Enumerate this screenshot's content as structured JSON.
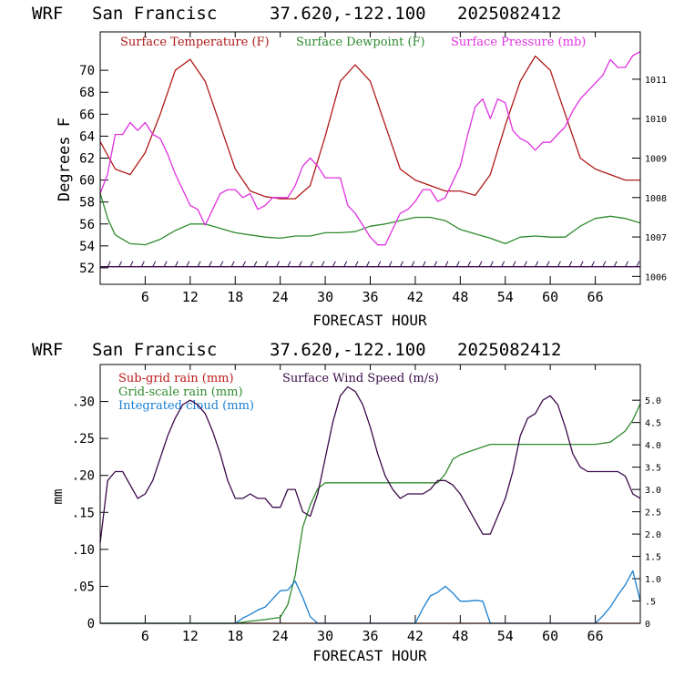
{
  "charts": {
    "top": {
      "header": {
        "model": "WRF",
        "location": "San Francisc",
        "coords": "37.620,-122.100",
        "init": "2025082412"
      },
      "ylabel": "Degrees F",
      "xlabel": "FORECAST HOUR",
      "legend": [
        "Surface Temperature (F)",
        "Surface Dewpoint (F)",
        "Surface Pressure (mb)"
      ]
    },
    "bottom": {
      "header": {
        "model": "WRF",
        "location": "San Francisc",
        "coords": "37.620,-122.100",
        "init": "2025082412"
      },
      "ylabel": "mm",
      "xlabel": "FORECAST HOUR",
      "legend": [
        "Sub-grid rain (mm)",
        "Grid-scale rain (mm)",
        "Integrated cloud (mm)",
        "Surface Wind Speed (m/s)"
      ]
    }
  },
  "colors": {
    "temperature": "#b01818",
    "dewpoint": "#2e8b2e",
    "pressure": "#e030e0",
    "wind": "#3a0a4a",
    "subgrid": "#c01818",
    "gridscale": "#2e8b2e",
    "cloud": "#1a7fd0",
    "axis": "#000000"
  },
  "chart_data": [
    {
      "type": "line",
      "xlabel": "FORECAST HOUR",
      "ylabel": "Degrees F",
      "xlim": [
        0,
        72
      ],
      "ylim": [
        50.5,
        73.5
      ],
      "x_ticks": [
        6,
        12,
        18,
        24,
        30,
        36,
        42,
        48,
        54,
        60,
        66
      ],
      "y_ticks": [
        52,
        54,
        56,
        58,
        60,
        62,
        64,
        66,
        68,
        70
      ],
      "y2_label": "",
      "y2_lim": [
        1005.8,
        1012.2
      ],
      "y2_ticks": [
        1006,
        1007,
        1008,
        1009,
        1010,
        1011
      ],
      "grid": false,
      "legend_position": "top",
      "series": [
        {
          "name": "Surface Temperature (F)",
          "axis": "left",
          "x": [
            0,
            2,
            4,
            6,
            8,
            10,
            12,
            14,
            16,
            18,
            20,
            22,
            24,
            26,
            28,
            30,
            32,
            34,
            36,
            38,
            40,
            42,
            44,
            46,
            48,
            50,
            52,
            54,
            56,
            58,
            60,
            62,
            64,
            66,
            68,
            70,
            72
          ],
          "values": [
            63.5,
            61.0,
            60.5,
            62.5,
            66.0,
            70.0,
            71.0,
            69.0,
            65.0,
            61.0,
            59.0,
            58.5,
            58.3,
            58.3,
            59.5,
            64.0,
            69.0,
            70.5,
            69.0,
            65.0,
            61.0,
            60.0,
            59.5,
            59.0,
            59.0,
            58.6,
            60.5,
            65.0,
            69.0,
            71.3,
            70.0,
            66.0,
            62.0,
            61.0,
            60.5,
            60.0,
            60.0
          ]
        },
        {
          "name": "Surface Dewpoint (F)",
          "axis": "left",
          "x": [
            0,
            1,
            2,
            4,
            6,
            8,
            10,
            12,
            14,
            16,
            18,
            20,
            22,
            24,
            26,
            28,
            30,
            32,
            34,
            36,
            38,
            40,
            42,
            44,
            46,
            48,
            50,
            52,
            54,
            56,
            58,
            60,
            62,
            64,
            66,
            68,
            70,
            72
          ],
          "values": [
            58.8,
            56.5,
            55.0,
            54.2,
            54.1,
            54.6,
            55.4,
            56.0,
            56.0,
            55.6,
            55.2,
            55.0,
            54.8,
            54.7,
            54.9,
            54.9,
            55.2,
            55.2,
            55.3,
            55.8,
            56.0,
            56.3,
            56.6,
            56.6,
            56.3,
            55.5,
            55.1,
            54.7,
            54.2,
            54.8,
            54.9,
            54.8,
            54.8,
            55.8,
            56.5,
            56.7,
            56.5,
            56.1
          ]
        },
        {
          "name": "Surface Pressure (mb)",
          "axis": "right",
          "x": [
            0,
            1,
            2,
            3,
            4,
            5,
            6,
            7,
            8,
            9,
            10,
            11,
            12,
            13,
            14,
            15,
            16,
            17,
            18,
            19,
            20,
            21,
            22,
            23,
            24,
            25,
            26,
            27,
            28,
            29,
            30,
            31,
            32,
            33,
            34,
            35,
            36,
            37,
            38,
            39,
            40,
            41,
            42,
            43,
            44,
            45,
            46,
            47,
            48,
            49,
            50,
            51,
            52,
            53,
            54,
            55,
            56,
            57,
            58,
            59,
            60,
            61,
            62,
            63,
            64,
            65,
            66,
            67,
            68,
            69,
            70,
            71,
            72
          ],
          "values": [
            1008.1,
            1008.6,
            1009.6,
            1009.6,
            1009.9,
            1009.7,
            1009.9,
            1009.6,
            1009.5,
            1009.1,
            1008.6,
            1008.2,
            1007.8,
            1007.7,
            1007.3,
            1007.7,
            1008.1,
            1008.2,
            1008.2,
            1008.0,
            1008.1,
            1007.7,
            1007.8,
            1008.0,
            1008.0,
            1008.0,
            1008.3,
            1008.8,
            1009.0,
            1008.8,
            1008.5,
            1008.5,
            1008.5,
            1007.8,
            1007.6,
            1007.3,
            1007.0,
            1006.8,
            1006.8,
            1007.2,
            1007.6,
            1007.7,
            1007.9,
            1008.2,
            1008.2,
            1007.9,
            1008.0,
            1008.4,
            1008.8,
            1009.6,
            1010.3,
            1010.5,
            1010.0,
            1010.5,
            1010.4,
            1009.7,
            1009.5,
            1009.4,
            1009.2,
            1009.4,
            1009.4,
            1009.6,
            1009.8,
            1010.2,
            1010.5,
            1010.7,
            1010.9,
            1011.1,
            1011.5,
            1011.3,
            1011.3,
            1011.6,
            1011.7
          ]
        },
        {
          "name": "",
          "role": "wind barbs",
          "axis": "left",
          "x": [
            0,
            72
          ],
          "values": [
            52.1,
            52.1
          ]
        }
      ]
    },
    {
      "type": "line",
      "xlabel": "FORECAST HOUR",
      "ylabel": "mm",
      "xlim": [
        0,
        72
      ],
      "ylim": [
        0,
        0.35
      ],
      "x_ticks": [
        6,
        12,
        18,
        24,
        30,
        36,
        42,
        48,
        54,
        60,
        66
      ],
      "y_ticks": [
        0,
        0.05,
        0.1,
        0.15,
        0.2,
        0.25,
        0.3
      ],
      "y_tick_labels": [
        "0",
        ".05",
        ".10",
        ".15",
        ".20",
        ".25",
        ".30"
      ],
      "y2_label": "",
      "y2_lim": [
        0,
        5.8
      ],
      "y2_ticks": [
        0,
        0.5,
        1.0,
        1.5,
        2.0,
        2.5,
        3.0,
        3.5,
        4.0,
        4.5,
        5.0
      ],
      "y2_tick_labels": [
        "0",
        ".5",
        "1.0",
        "1.5",
        "2.0",
        "2.5",
        "3.0",
        "3.5",
        "4.0",
        "4.5",
        "5.0"
      ],
      "grid": false,
      "legend_position": "top-left",
      "series": [
        {
          "name": "Sub-grid rain (mm)",
          "axis": "left",
          "x": [
            0,
            72
          ],
          "values": [
            0,
            0
          ]
        },
        {
          "name": "Grid-scale rain (mm)",
          "axis": "left",
          "x": [
            0,
            18,
            20,
            22,
            24,
            25,
            26,
            27,
            28,
            29,
            30,
            32,
            36,
            40,
            45,
            46,
            47,
            48,
            50,
            52,
            54,
            56,
            60,
            64,
            66,
            68,
            70,
            71,
            72
          ],
          "values": [
            0,
            0,
            0.003,
            0.005,
            0.008,
            0.025,
            0.065,
            0.13,
            0.16,
            0.182,
            0.19,
            0.19,
            0.19,
            0.19,
            0.19,
            0.202,
            0.222,
            0.228,
            0.235,
            0.242,
            0.242,
            0.242,
            0.242,
            0.242,
            0.242,
            0.245,
            0.26,
            0.275,
            0.297
          ]
        },
        {
          "name": "Integrated cloud (mm)",
          "axis": "left",
          "x": [
            0,
            18,
            19,
            20,
            21,
            22,
            23,
            24,
            25,
            26,
            27,
            28,
            29,
            42,
            43,
            44,
            45,
            46,
            47,
            48,
            49,
            50,
            51,
            52,
            66,
            67,
            68,
            69,
            70,
            71,
            72
          ],
          "values": [
            0,
            0,
            0.007,
            0.012,
            0.018,
            0.022,
            0.033,
            0.044,
            0.045,
            0.057,
            0.035,
            0.009,
            0,
            0,
            0.02,
            0.037,
            0.042,
            0.05,
            0.041,
            0.03,
            0.03,
            0.031,
            0.03,
            0,
            0,
            0.01,
            0.022,
            0.038,
            0.052,
            0.071,
            0.03
          ]
        },
        {
          "name": "Surface Wind Speed (m/s)",
          "axis": "right",
          "x": [
            0,
            1,
            2,
            3,
            4,
            5,
            6,
            7,
            8,
            9,
            10,
            11,
            12,
            13,
            14,
            15,
            16,
            17,
            18,
            19,
            20,
            21,
            22,
            23,
            24,
            25,
            26,
            27,
            28,
            29,
            30,
            31,
            32,
            33,
            34,
            35,
            36,
            37,
            38,
            39,
            40,
            41,
            42,
            43,
            44,
            45,
            46,
            47,
            48,
            49,
            50,
            51,
            52,
            53,
            54,
            55,
            56,
            57,
            58,
            59,
            60,
            61,
            62,
            63,
            64,
            65,
            66,
            67,
            68,
            69,
            70,
            71,
            72
          ],
          "values": [
            1.8,
            3.2,
            3.4,
            3.4,
            3.1,
            2.8,
            2.9,
            3.2,
            3.7,
            4.2,
            4.6,
            4.9,
            5.0,
            4.9,
            4.7,
            4.3,
            3.8,
            3.2,
            2.8,
            2.8,
            2.9,
            2.8,
            2.8,
            2.6,
            2.6,
            3.0,
            3.0,
            2.5,
            2.4,
            2.9,
            3.7,
            4.5,
            5.1,
            5.3,
            5.2,
            4.9,
            4.4,
            3.8,
            3.3,
            3.0,
            2.8,
            2.9,
            2.9,
            2.9,
            3.0,
            3.2,
            3.2,
            3.1,
            2.9,
            2.6,
            2.3,
            2.0,
            2.0,
            2.4,
            2.8,
            3.4,
            4.2,
            4.6,
            4.7,
            5.0,
            5.1,
            4.9,
            4.4,
            3.8,
            3.5,
            3.4,
            3.4,
            3.4,
            3.4,
            3.4,
            3.3,
            2.9,
            2.8
          ]
        }
      ]
    }
  ]
}
